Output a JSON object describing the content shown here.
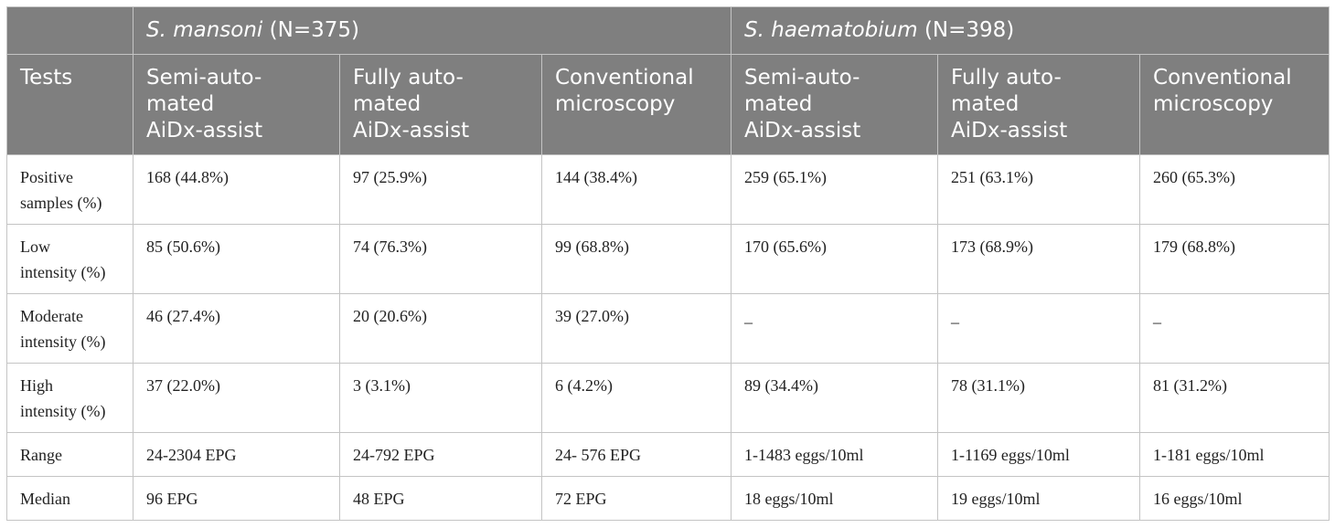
{
  "table": {
    "group_headers": [
      {
        "species": "S. mansoni",
        "count": " (N=375)"
      },
      {
        "species": "S. haematobium",
        "count": " (N=398)"
      }
    ],
    "column_headers": [
      "Tests",
      "Semi-auto-\nmated\nAiDx-assist",
      "Fully auto-\nmated\nAiDx-assist",
      "Conventional\nmicroscopy",
      "Semi-auto-\nmated\nAiDx-assist",
      "Fully auto-\nmated\nAiDx-assist",
      "Conventional\nmicroscopy"
    ],
    "rows": [
      {
        "label": "Positive\nsamples (%)",
        "cells": [
          "168 (44.8%)",
          "97 (25.9%)",
          "144 (38.4%)",
          "259 (65.1%)",
          "251 (63.1%)",
          "260 (65.3%)"
        ]
      },
      {
        "label": "Low\nintensity (%)",
        "cells": [
          "85 (50.6%)",
          "74 (76.3%)",
          "99 (68.8%)",
          "170 (65.6%)",
          "173 (68.9%)",
          "179 (68.8%)"
        ]
      },
      {
        "label": "Moderate\nintensity (%)",
        "cells": [
          "46 (27.4%)",
          "20 (20.6%)",
          "39 (27.0%)",
          "_",
          "_",
          "_"
        ]
      },
      {
        "label": "High\nintensity (%)",
        "cells": [
          "37 (22.0%)",
          "3 (3.1%)",
          "6 (4.2%)",
          "89 (34.4%)",
          "78 (31.1%)",
          "81 (31.2%)"
        ]
      },
      {
        "label": "Range",
        "cells": [
          "24-2304 EPG",
          "24-792 EPG",
          "24- 576 EPG",
          "1-1483 eggs/10ml",
          "1-1169 eggs/10ml",
          "1-181 eggs/10ml"
        ]
      },
      {
        "label": "Median",
        "cells": [
          "96 EPG",
          "48 EPG",
          "72 EPG",
          "18 eggs/10ml",
          "19 eggs/10ml",
          "16 eggs/10ml"
        ]
      }
    ]
  }
}
